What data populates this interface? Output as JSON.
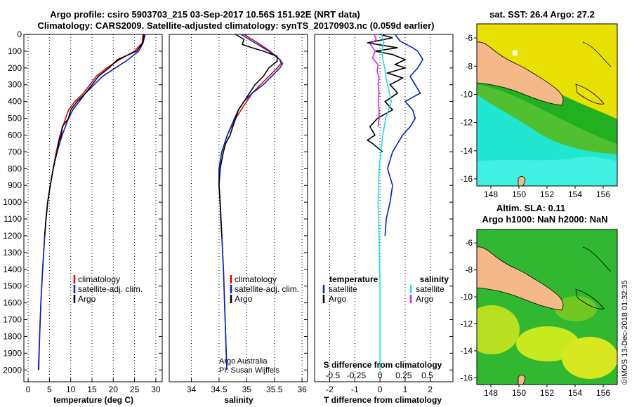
{
  "titles": {
    "line1": "Argo profile: csiro 5903703_215 03-Sep-2017 10.56S 151.92E (NRT data)",
    "line2": "Climatology: CARS2009. Satellite-adjusted climatology: synTS_20170903.nc (0.059d earlier)",
    "map_top_title": "sat. SST: 26.4 Argo: 27.2",
    "map_bottom_title1": "Altim. SLA: 0.11",
    "map_bottom_title2": "Argo h1000: NaN h2000: NaN",
    "vertical_credit": "©IMOS 13-Dec-2018 01:32:35"
  },
  "colors": {
    "climatology": "#e00000",
    "satellite": "#0020d0",
    "argo": "#000000",
    "sat_salinity": "#20e0e0",
    "argo_salinity": "#e020e0",
    "land": "#f5b888",
    "map_bg_yellow": "#e8e000",
    "map_green": "#20b020",
    "map_cyan": "#20e8d0"
  },
  "legends": {
    "temp": {
      "climatology": "climatology",
      "satellite": "satellite-adj. clim.",
      "argo": "Argo"
    },
    "sal": {
      "climatology": "climatology",
      "satellite": "satellite-adj. clim.",
      "argo": "Argo"
    },
    "diff": {
      "temperature": "temperature",
      "salinity": "salinity",
      "satellite": "satellite",
      "argo": "Argo"
    }
  },
  "credits": {
    "line1": "Argo Australia",
    "line2": "PI: Susan Wijffels"
  },
  "chart_data": [
    {
      "type": "line",
      "title": "",
      "xlabel": "temperature (deg C)",
      "ylabel": "",
      "xlim": [
        -1,
        31.5
      ],
      "ylim": [
        2070,
        0
      ],
      "xticks": [
        0,
        5,
        10,
        15,
        20,
        25,
        30
      ],
      "yticks": [
        0,
        100,
        200,
        300,
        400,
        500,
        600,
        700,
        800,
        900,
        1000,
        1100,
        1200,
        1300,
        1400,
        1500,
        1600,
        1700,
        1800,
        1900,
        2000
      ],
      "series": [
        {
          "name": "climatology",
          "color": "#e00000",
          "depth": [
            0,
            50,
            100,
            150,
            200,
            250,
            300,
            350,
            400,
            450,
            500,
            600,
            700,
            800,
            900,
            1000,
            1100,
            1200,
            1400,
            1600,
            1800,
            2000
          ],
          "values": [
            27.0,
            26.8,
            25.0,
            21.5,
            18.5,
            16.0,
            14.5,
            13.0,
            11.0,
            9.5,
            8.8,
            7.5,
            6.6,
            5.9,
            5.2,
            4.6,
            4.2,
            3.9,
            3.4,
            3.0,
            2.7,
            2.5
          ]
        },
        {
          "name": "satellite-adj. clim.",
          "color": "#0020d0",
          "depth": [
            0,
            50,
            100,
            150,
            200,
            250,
            300,
            350,
            400,
            450,
            500,
            600,
            700,
            800,
            900,
            1000,
            1100,
            1200,
            1400,
            1600,
            1800,
            2000
          ],
          "values": [
            27.5,
            27.0,
            26.0,
            23.5,
            20.5,
            17.5,
            15.5,
            13.5,
            12.0,
            10.5,
            9.5,
            8.0,
            6.8,
            5.9,
            5.2,
            4.6,
            4.2,
            3.9,
            3.4,
            3.0,
            2.7,
            2.4
          ]
        },
        {
          "name": "Argo",
          "color": "#000000",
          "depth": [
            0,
            50,
            100,
            150,
            200,
            250,
            300,
            350,
            400,
            450,
            500,
            550,
            600,
            640,
            700,
            750,
            800,
            900,
            1000,
            1100,
            1200
          ],
          "values": [
            27.2,
            27.0,
            25.5,
            21.0,
            19.0,
            16.5,
            15.0,
            13.5,
            11.5,
            10.0,
            9.5,
            8.0,
            7.8,
            7.2,
            6.8,
            6.3,
            5.9,
            5.2,
            4.6,
            4.2,
            3.9
          ]
        }
      ]
    },
    {
      "type": "line",
      "title": "",
      "xlabel": "salinity",
      "ylabel": "",
      "xlim": [
        33.6,
        36.1
      ],
      "ylim": [
        2070,
        0
      ],
      "xticks": [
        34,
        34.5,
        35,
        35.5,
        36
      ],
      "xticklabels": [
        "34",
        "34.5",
        "35",
        "35.5",
        "36"
      ],
      "series": [
        {
          "name": "climatology",
          "color": "#e00000",
          "depth": [
            0,
            50,
            100,
            150,
            175,
            200,
            250,
            300,
            350,
            400,
            450,
            500,
            600,
            700,
            800,
            900,
            1000,
            1200,
            1400,
            1600,
            1800,
            2000
          ],
          "values": [
            34.95,
            35.2,
            35.42,
            35.6,
            35.62,
            35.55,
            35.4,
            35.25,
            35.1,
            35.0,
            34.9,
            34.8,
            34.65,
            34.55,
            34.5,
            34.5,
            34.52,
            34.55,
            34.58,
            34.6,
            34.62,
            34.64
          ]
        },
        {
          "name": "satellite-adj. clim.",
          "color": "#0020d0",
          "depth": [
            0,
            50,
            100,
            150,
            175,
            200,
            250,
            300,
            350,
            400,
            450,
            500,
            600,
            700,
            800,
            900,
            1000,
            1200,
            1400,
            1600,
            1800,
            2000
          ],
          "values": [
            34.9,
            35.15,
            35.4,
            35.6,
            35.65,
            35.6,
            35.45,
            35.3,
            35.1,
            34.95,
            34.85,
            34.78,
            34.65,
            34.55,
            34.5,
            34.5,
            34.52,
            34.55,
            34.58,
            34.6,
            34.62,
            34.64
          ]
        },
        {
          "name": "Argo",
          "color": "#000000",
          "depth": [
            0,
            30,
            60,
            80,
            100,
            130,
            160,
            200,
            250,
            300,
            350,
            400,
            450,
            500,
            550,
            600,
            650,
            700,
            800,
            900,
            1000,
            1100,
            1200
          ],
          "values": [
            34.8,
            34.95,
            34.92,
            35.1,
            35.3,
            35.55,
            35.55,
            35.4,
            35.3,
            35.15,
            35.05,
            34.95,
            34.85,
            34.8,
            34.75,
            34.7,
            34.62,
            34.58,
            34.52,
            34.5,
            34.52,
            34.53,
            34.55
          ]
        }
      ]
    },
    {
      "type": "line",
      "title": "",
      "xlabel": "T difference from climatology",
      "xlabel_top": "S difference from climatology",
      "ylabel": "",
      "xlim": [
        -2.6,
        2.9
      ],
      "ylim": [
        2070,
        0
      ],
      "xticks": [
        -2,
        -1,
        0,
        1,
        2
      ],
      "xticks_top": [
        -0.5,
        -0.25,
        0,
        0.25,
        0.5
      ],
      "xticklabels_top": [
        "-0.5",
        "-0.25",
        "0",
        "0.25",
        "0.5"
      ],
      "series": [
        {
          "name": "satellite (temperature)",
          "color": "#0020d0",
          "depth": [
            0,
            40,
            80,
            100,
            150,
            200,
            250,
            300,
            350,
            400,
            450,
            500,
            550,
            600,
            700,
            800,
            900,
            1000,
            1100,
            1200
          ],
          "values": [
            0.6,
            0.8,
            1.3,
            1.5,
            1.7,
            1.5,
            1.2,
            1.4,
            1.6,
            1.0,
            1.3,
            1.4,
            1.2,
            0.9,
            0.5,
            0.3,
            0.5,
            0.4,
            0.25,
            0.2
          ]
        },
        {
          "name": "Argo (temperature)",
          "color": "#000000",
          "depth": [
            0,
            20,
            50,
            80,
            100,
            120,
            150,
            180,
            200,
            230,
            260,
            300,
            350,
            400,
            450,
            500,
            550,
            600,
            630,
            650,
            700
          ],
          "values": [
            0.0,
            0.5,
            -0.5,
            0.7,
            -0.2,
            0.5,
            1.0,
            0.6,
            1.0,
            0.3,
            0.9,
            0.4,
            0.7,
            0.2,
            0.5,
            -0.1,
            -0.4,
            -0.2,
            -0.5,
            -0.3,
            0.1
          ]
        },
        {
          "name": "satellite (salinity)",
          "color": "#20e0e0",
          "depth": [
            0,
            50,
            100,
            150,
            200,
            250,
            300,
            350,
            400,
            450,
            500,
            600,
            700,
            800,
            1000,
            1200,
            1500,
            1800,
            2000
          ],
          "values": [
            0.02,
            0.04,
            0.02,
            0.03,
            0.05,
            0.06,
            0.08,
            0.1,
            0.12,
            0.09,
            0.06,
            0.03,
            0.01,
            -0.01,
            -0.02,
            -0.01,
            0.0,
            0.0,
            0.0
          ]
        },
        {
          "name": "Argo (salinity)",
          "color": "#e020e0",
          "depth": [
            0,
            30,
            60,
            100,
            140,
            180,
            220,
            260,
            300,
            350,
            400,
            450,
            500,
            550
          ],
          "values": [
            -0.06,
            -0.04,
            -0.1,
            -0.05,
            -0.08,
            -0.02,
            -0.03,
            -0.01,
            -0.02,
            -0.01,
            -0.02,
            -0.01,
            -0.01,
            -0.02
          ]
        }
      ]
    },
    {
      "type": "heatmap",
      "title": "sat. SST: 26.4 Argo: 27.2",
      "xlim": [
        147,
        157
      ],
      "ylim": [
        -16.5,
        -5
      ],
      "xticks": [
        148,
        150,
        152,
        154,
        156
      ],
      "yticks": [
        -6,
        -8,
        -10,
        -12,
        -14,
        -16
      ]
    },
    {
      "type": "heatmap",
      "title": "Altim. SLA: 0.11",
      "xlim": [
        147,
        157
      ],
      "ylim": [
        -16.5,
        -5
      ],
      "xticks": [
        148,
        150,
        152,
        154,
        156
      ],
      "yticks": [
        -6,
        -8,
        -10,
        -12,
        -14,
        -16
      ]
    }
  ]
}
